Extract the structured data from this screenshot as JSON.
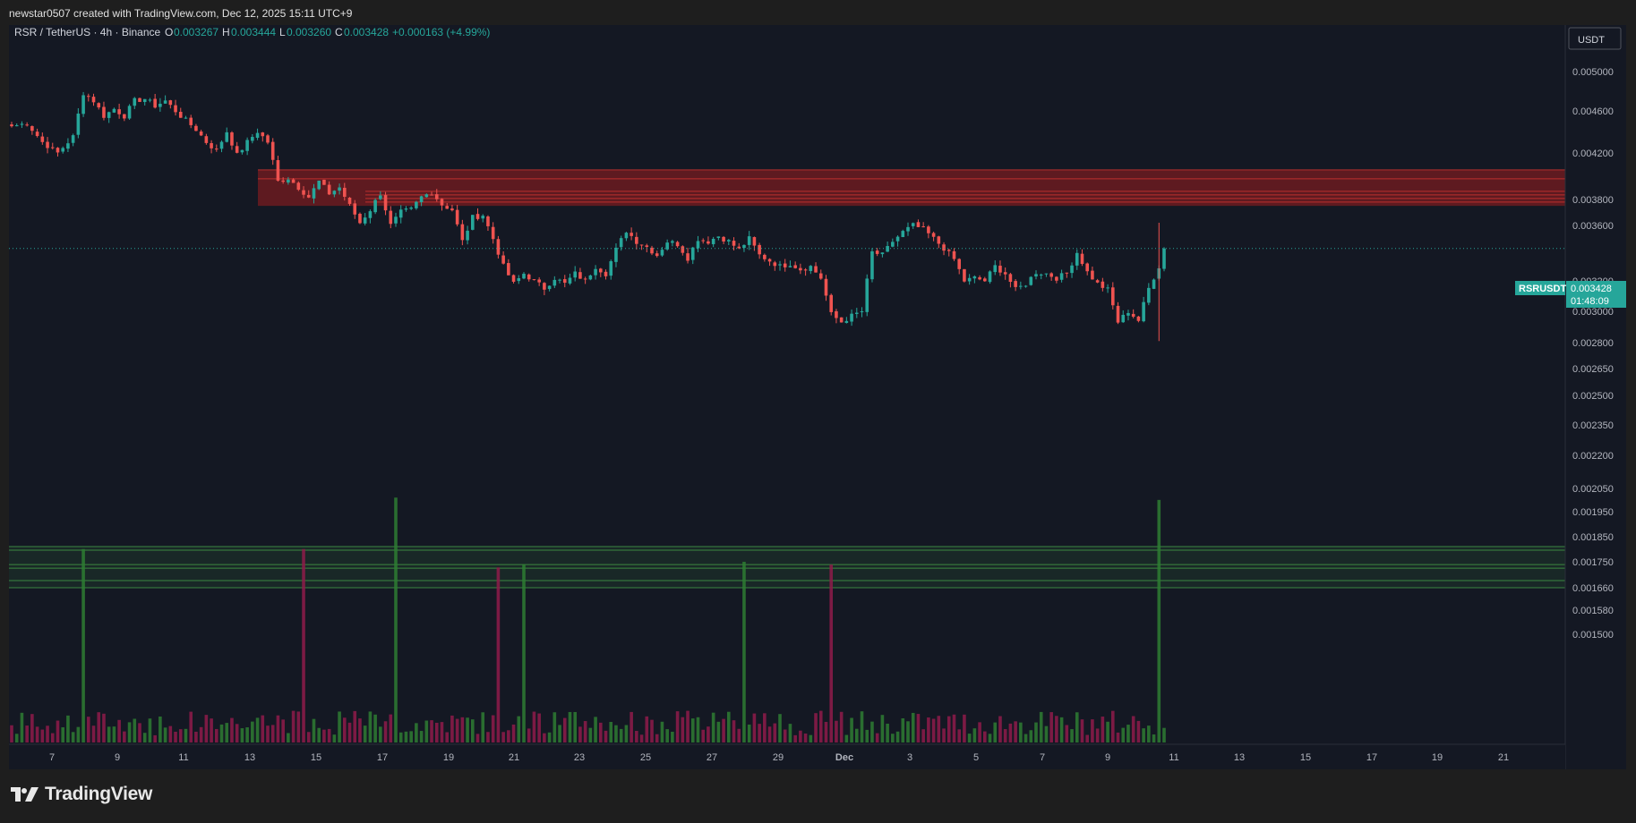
{
  "header": {
    "credit": "newstar0507 created with TradingView.com, Dec 12, 2025 15:11 UTC+9"
  },
  "legend": {
    "symbol": "RSR / TetherUS · 4h · Binance",
    "o_label": "O",
    "o_value": "0.003267",
    "h_label": "H",
    "h_value": "0.003444",
    "l_label": "L",
    "l_value": "0.003260",
    "c_label": "C",
    "c_value": "0.003428",
    "change": "+0.000163 (+4.99%)"
  },
  "price_axis": {
    "currency": "USDT"
  },
  "price_tag": {
    "symbol": "RSRUSDT",
    "price": "0.003428",
    "countdown": "01:48:09"
  },
  "footer": {
    "brand": "TradingView"
  },
  "colors": {
    "up": "#26a69a",
    "down": "#ef5350",
    "vol_up": "#2e7d32",
    "vol_down": "#8e1b4a",
    "zone_red": "#b71c1c",
    "zone_green": "#43a047"
  },
  "chart_data": {
    "type": "candlestick",
    "symbol": "RSRUSDT",
    "interval": "4h",
    "exchange": "Binance",
    "y_scale": "log",
    "y_ticks": [
      "0.005000",
      "0.004600",
      "0.004200",
      "0.003800",
      "0.003600",
      "0.003200",
      "0.003000",
      "0.002800",
      "0.002650",
      "0.002500",
      "0.002350",
      "0.002200",
      "0.002050",
      "0.001950",
      "0.001850",
      "0.001750",
      "0.001660",
      "0.001580",
      "0.001500"
    ],
    "x_ticks": [
      "7",
      "9",
      "11",
      "13",
      "15",
      "17",
      "19",
      "21",
      "23",
      "25",
      "27",
      "29",
      "Dec",
      "3",
      "5",
      "7",
      "9",
      "11",
      "13",
      "15",
      "17",
      "19",
      "21"
    ],
    "last_price": 0.003428,
    "resistance_zone": {
      "low": 0.00375,
      "high": 0.00405
    },
    "volume_zone_levels": [
      0.00181,
      0.00174,
      0.00166
    ],
    "close_anchors": [
      [
        0,
        0.00445
      ],
      [
        3,
        0.00448
      ],
      [
        6,
        0.0043
      ],
      [
        9,
        0.0042
      ],
      [
        12,
        0.00435
      ],
      [
        14,
        0.00478
      ],
      [
        16,
        0.0047
      ],
      [
        18,
        0.00455
      ],
      [
        20,
        0.00462
      ],
      [
        22,
        0.00455
      ],
      [
        24,
        0.0047
      ],
      [
        26,
        0.00472
      ],
      [
        28,
        0.00465
      ],
      [
        30,
        0.0047
      ],
      [
        33,
        0.00455
      ],
      [
        36,
        0.00442
      ],
      [
        38,
        0.0043
      ],
      [
        40,
        0.00422
      ],
      [
        42,
        0.0044
      ],
      [
        44,
        0.00418
      ],
      [
        46,
        0.0043
      ],
      [
        48,
        0.0044
      ],
      [
        50,
        0.0043
      ],
      [
        52,
        0.00395
      ],
      [
        54,
        0.00398
      ],
      [
        56,
        0.0039
      ],
      [
        58,
        0.00382
      ],
      [
        60,
        0.00395
      ],
      [
        62,
        0.00385
      ],
      [
        64,
        0.0039
      ],
      [
        66,
        0.00375
      ],
      [
        68,
        0.00362
      ],
      [
        70,
        0.00372
      ],
      [
        72,
        0.00385
      ],
      [
        74,
        0.0036
      ],
      [
        76,
        0.0037
      ],
      [
        78,
        0.00372
      ],
      [
        80,
        0.00382
      ],
      [
        82,
        0.00386
      ],
      [
        84,
        0.00376
      ],
      [
        86,
        0.00372
      ],
      [
        88,
        0.00348
      ],
      [
        90,
        0.00366
      ],
      [
        92,
        0.00368
      ],
      [
        94,
        0.0035
      ],
      [
        96,
        0.0033
      ],
      [
        98,
        0.00318
      ],
      [
        100,
        0.00325
      ],
      [
        102,
        0.0032
      ],
      [
        104,
        0.00315
      ],
      [
        106,
        0.00322
      ],
      [
        108,
        0.00318
      ],
      [
        110,
        0.00325
      ],
      [
        112,
        0.0032
      ],
      [
        114,
        0.0033
      ],
      [
        116,
        0.00325
      ],
      [
        118,
        0.00342
      ],
      [
        120,
        0.00356
      ],
      [
        122,
        0.00348
      ],
      [
        124,
        0.00344
      ],
      [
        126,
        0.00338
      ],
      [
        128,
        0.00348
      ],
      [
        130,
        0.00346
      ],
      [
        132,
        0.00336
      ],
      [
        134,
        0.0035
      ],
      [
        136,
        0.00348
      ],
      [
        138,
        0.00352
      ],
      [
        140,
        0.00348
      ],
      [
        142,
        0.00342
      ],
      [
        144,
        0.0035
      ],
      [
        146,
        0.00338
      ],
      [
        148,
        0.00334
      ],
      [
        150,
        0.0033
      ],
      [
        152,
        0.00332
      ],
      [
        154,
        0.00328
      ],
      [
        156,
        0.0033
      ],
      [
        158,
        0.00322
      ],
      [
        160,
        0.00298
      ],
      [
        162,
        0.00293
      ],
      [
        164,
        0.00297
      ],
      [
        166,
        0.003
      ],
      [
        168,
        0.0034
      ],
      [
        170,
        0.00338
      ],
      [
        172,
        0.00348
      ],
      [
        174,
        0.00355
      ],
      [
        176,
        0.0036
      ],
      [
        178,
        0.00357
      ],
      [
        180,
        0.0035
      ],
      [
        182,
        0.00343
      ],
      [
        184,
        0.00335
      ],
      [
        186,
        0.0032
      ],
      [
        188,
        0.00322
      ],
      [
        190,
        0.0032
      ],
      [
        192,
        0.0033
      ],
      [
        194,
        0.00325
      ],
      [
        196,
        0.00314
      ],
      [
        198,
        0.00318
      ],
      [
        200,
        0.00326
      ],
      [
        202,
        0.00325
      ],
      [
        204,
        0.00322
      ],
      [
        206,
        0.00325
      ],
      [
        208,
        0.0034
      ],
      [
        210,
        0.00326
      ],
      [
        212,
        0.00318
      ],
      [
        214,
        0.00314
      ],
      [
        216,
        0.00293
      ],
      [
        218,
        0.003
      ],
      [
        220,
        0.00294
      ],
      [
        222,
        0.00315
      ],
      [
        224,
        0.0033
      ],
      [
        225,
        0.003428
      ]
    ],
    "volume_spikes": [
      [
        14,
        0.0018
      ],
      [
        57,
        0.0018
      ],
      [
        75,
        0.00201
      ],
      [
        95,
        0.00173
      ],
      [
        100,
        0.00174
      ],
      [
        143,
        0.00175
      ],
      [
        160,
        0.00174
      ],
      [
        224,
        0.002
      ],
      [
        226,
        0.00192
      ]
    ]
  }
}
